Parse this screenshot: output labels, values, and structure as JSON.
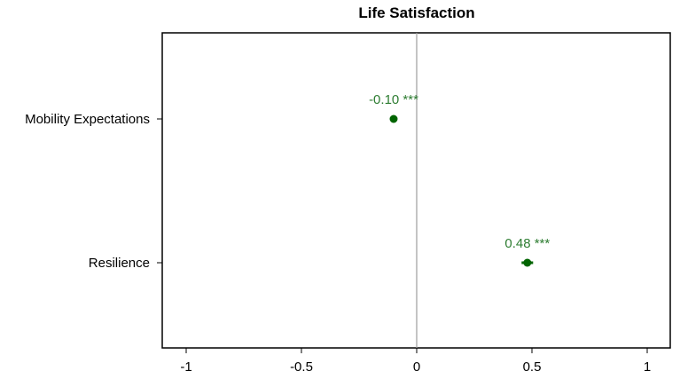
{
  "chart_data": {
    "type": "scatter",
    "title": "Life Satisfaction",
    "xlabel": "",
    "ylabel": "",
    "xlim": [
      -1.1,
      1.1
    ],
    "xticks": [
      -1,
      -0.5,
      0,
      0.5,
      1
    ],
    "xtick_labels": [
      "-1",
      "-0.5",
      "0",
      "0.5",
      "1"
    ],
    "reference_line_x": 0,
    "categories": [
      "Mobility Expectations",
      "Resilience"
    ],
    "points": [
      {
        "category": "Mobility Expectations",
        "estimate": -0.1,
        "ci_low": -0.115,
        "ci_high": -0.085,
        "label": "-0.10 ***"
      },
      {
        "category": "Resilience",
        "estimate": 0.48,
        "ci_low": 0.455,
        "ci_high": 0.505,
        "label": "0.48 ***"
      }
    ],
    "marker_color": "#006400",
    "label_color": "#2e7d32",
    "grid": false,
    "legend": "none"
  }
}
